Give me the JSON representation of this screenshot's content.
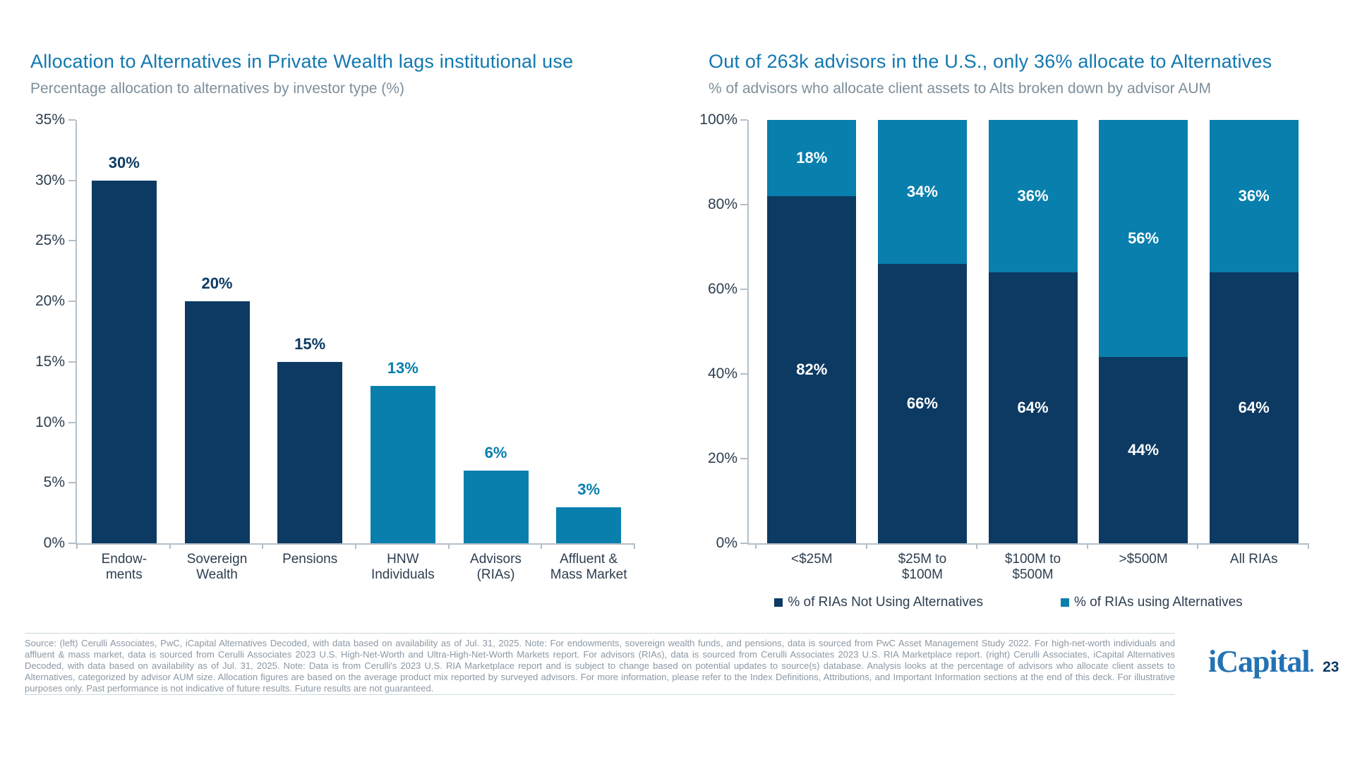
{
  "colors": {
    "dark": "#0d3a63",
    "light": "#087fad",
    "title_blue": "#1278b0",
    "subtitle_gray": "#7e8f9a",
    "axis_text": "#2d3e50",
    "axis_line": "#b3bfc7",
    "footer_gray": "#8b98a4",
    "logo_blue": "#2272b4"
  },
  "left_chart": {
    "title": "Allocation to Alternatives in Private Wealth lags institutional use",
    "subtitle": "Percentage allocation to alternatives by investor type (%)"
  },
  "right_chart": {
    "title": "Out of 263k advisors in the U.S., only 36% allocate to Alternatives",
    "subtitle": "% of advisors who allocate client assets to Alts broken down by advisor AUM"
  },
  "legend": {
    "items": [
      {
        "label": "% of RIAs Not Using Alternatives",
        "color": "dark"
      },
      {
        "label": "% of RIAs using Alternatives",
        "color": "light"
      }
    ]
  },
  "footer": {
    "text": "Source: (left) Cerulli Associates, PwC, iCapital Alternatives Decoded, with data based on availability as of Jul. 31, 2025. Note: For endowments, sovereign wealth funds, and pensions, data is sourced from PwC Asset Management Study 2022. For high-net-worth individuals and affluent & mass market, data is sourced from Cerulli Associates 2023 U.S. High-Net-Worth and Ultra-High-Net-Worth Markets report. For advisors (RIAs), data is sourced from Cerulli Associates 2023 U.S. RIA Marketplace report. (right) Cerulli Associates, iCapital Alternatives Decoded, with data based on availability as of Jul. 31, 2025. Note: Data is from Cerulli's 2023 U.S. RIA Marketplace report and is subject to change based on potential updates to source(s) database. Analysis looks at the percentage of advisors who allocate client assets to Alternatives, categorized by advisor AUM size. Allocation figures are based on the average product mix reported by surveyed advisors. For more information, please refer to the Index Definitions, Attributions, and Important Information sections at the end of this deck. For illustrative purposes only. Past performance is not indicative of future results. Future results are not guaranteed."
  },
  "branding": {
    "logo_text": "iCapital",
    "logo_suffix": ".",
    "page_number": "23"
  },
  "chart_data": [
    {
      "type": "bar",
      "title": "Allocation to Alternatives in Private Wealth lags institutional use",
      "subtitle": "Percentage allocation to alternatives by investor type (%)",
      "categories": [
        "Endow-ments",
        "Sovereign Wealth",
        "Pensions",
        "HNW Individuals",
        "Advisors (RIAs)",
        "Affluent & Mass Market"
      ],
      "category_label_lines": [
        [
          "Endow-",
          "ments"
        ],
        [
          "Sovereign",
          "Wealth"
        ],
        [
          "Pensions"
        ],
        [
          "HNW",
          "Individuals"
        ],
        [
          "Advisors",
          "(RIAs)"
        ],
        [
          "Affluent &",
          "Mass Market"
        ]
      ],
      "values": [
        30,
        20,
        15,
        13,
        6,
        3
      ],
      "value_labels": [
        "30%",
        "20%",
        "15%",
        "13%",
        "6%",
        "3%"
      ],
      "bar_colors": [
        "dark",
        "dark",
        "dark",
        "light",
        "light",
        "light"
      ],
      "xlabel": "",
      "ylabel": "",
      "ylim": [
        0,
        35
      ],
      "ytick_step": 5,
      "ytick_labels": [
        "0%",
        "5%",
        "10%",
        "15%",
        "20%",
        "25%",
        "30%",
        "35%"
      ],
      "grid": false,
      "legend_position": "none"
    },
    {
      "type": "bar",
      "stacked": true,
      "title": "Out of 263k advisors in the U.S., only 36% allocate to Alternatives",
      "subtitle": "% of advisors who allocate client assets to Alts broken down by advisor AUM",
      "categories": [
        "<$25M",
        "$25M to $100M",
        "$100M to $500M",
        ">$500M",
        "All RIAs"
      ],
      "category_label_lines": [
        [
          "<$25M"
        ],
        [
          "$25M to",
          "$100M"
        ],
        [
          "$100M to",
          "$500M"
        ],
        [
          ">$500M"
        ],
        [
          "All RIAs"
        ]
      ],
      "series": [
        {
          "name": "% of RIAs Not Using Alternatives",
          "values": [
            82,
            66,
            64,
            44,
            64
          ],
          "labels": [
            "82%",
            "66%",
            "64%",
            "44%",
            "64%"
          ],
          "color": "dark"
        },
        {
          "name": "% of RIAs using Alternatives",
          "values": [
            18,
            34,
            36,
            56,
            36
          ],
          "labels": [
            "18%",
            "34%",
            "36%",
            "56%",
            "36%"
          ],
          "color": "light"
        }
      ],
      "xlabel": "",
      "ylabel": "",
      "ylim": [
        0,
        100
      ],
      "ytick_step": 20,
      "ytick_labels": [
        "0%",
        "20%",
        "40%",
        "60%",
        "80%",
        "100%"
      ],
      "grid": false,
      "legend_position": "bottom"
    }
  ]
}
